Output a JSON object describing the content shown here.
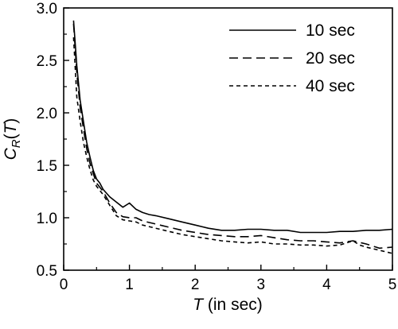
{
  "chart_data": {
    "type": "line",
    "title": "",
    "xlabel_main": "T",
    "xlabel_rest": " (in sec)",
    "ylabel_main": "C",
    "ylabel_sub": "R",
    "ylabel_rest": "(T)",
    "xlim": [
      0,
      5
    ],
    "ylim": [
      0.5,
      3.0
    ],
    "x_ticks": [
      "0",
      "1",
      "2",
      "3",
      "4",
      "5"
    ],
    "y_ticks": [
      "0.5",
      "1.0",
      "1.5",
      "2.0",
      "2.5",
      "3.0"
    ],
    "grid": false,
    "legend_position": "top-right",
    "series": [
      {
        "name": "10 sec",
        "dash": "solid",
        "x": [
          0.15,
          0.2,
          0.25,
          0.3,
          0.35,
          0.4,
          0.45,
          0.5,
          0.55,
          0.6,
          0.7,
          0.8,
          0.9,
          1.0,
          1.1,
          1.2,
          1.3,
          1.4,
          1.6,
          1.8,
          2.0,
          2.2,
          2.4,
          2.6,
          2.8,
          3.0,
          3.2,
          3.4,
          3.6,
          3.8,
          4.0,
          4.2,
          4.4,
          4.6,
          4.8,
          5.0
        ],
        "y": [
          2.88,
          2.45,
          2.12,
          1.92,
          1.72,
          1.58,
          1.45,
          1.37,
          1.33,
          1.27,
          1.2,
          1.15,
          1.1,
          1.14,
          1.08,
          1.05,
          1.03,
          1.02,
          0.99,
          0.96,
          0.93,
          0.9,
          0.88,
          0.88,
          0.89,
          0.89,
          0.88,
          0.88,
          0.86,
          0.86,
          0.86,
          0.87,
          0.87,
          0.88,
          0.88,
          0.89
        ]
      },
      {
        "name": "20 sec",
        "dash": "long",
        "x": [
          0.15,
          0.2,
          0.25,
          0.3,
          0.35,
          0.4,
          0.45,
          0.5,
          0.6,
          0.7,
          0.8,
          0.9,
          1.0,
          1.1,
          1.2,
          1.4,
          1.6,
          1.8,
          2.0,
          2.2,
          2.4,
          2.6,
          2.8,
          3.0,
          3.2,
          3.4,
          3.6,
          3.8,
          4.0,
          4.2,
          4.4,
          4.6,
          4.8,
          5.0
        ],
        "y": [
          2.85,
          2.38,
          2.05,
          1.85,
          1.66,
          1.52,
          1.42,
          1.33,
          1.25,
          1.14,
          1.05,
          1.01,
          1.0,
          1.0,
          0.97,
          0.94,
          0.91,
          0.88,
          0.86,
          0.84,
          0.83,
          0.82,
          0.82,
          0.83,
          0.81,
          0.79,
          0.78,
          0.78,
          0.77,
          0.76,
          0.78,
          0.75,
          0.71,
          0.72
        ]
      },
      {
        "name": "40 sec",
        "dash": "short",
        "x": [
          0.15,
          0.2,
          0.25,
          0.3,
          0.35,
          0.4,
          0.45,
          0.5,
          0.6,
          0.7,
          0.8,
          0.9,
          1.0,
          1.1,
          1.2,
          1.4,
          1.6,
          1.8,
          2.0,
          2.2,
          2.4,
          2.6,
          2.8,
          3.0,
          3.2,
          3.4,
          3.6,
          3.8,
          4.0,
          4.2,
          4.3,
          4.4,
          4.5,
          4.6,
          4.8,
          5.0
        ],
        "y": [
          2.72,
          2.15,
          1.92,
          1.72,
          1.58,
          1.46,
          1.36,
          1.3,
          1.22,
          1.12,
          1.02,
          0.98,
          0.97,
          0.96,
          0.93,
          0.9,
          0.87,
          0.84,
          0.82,
          0.8,
          0.78,
          0.77,
          0.76,
          0.77,
          0.75,
          0.75,
          0.74,
          0.74,
          0.73,
          0.74,
          0.76,
          0.78,
          0.74,
          0.72,
          0.69,
          0.66
        ]
      }
    ]
  }
}
